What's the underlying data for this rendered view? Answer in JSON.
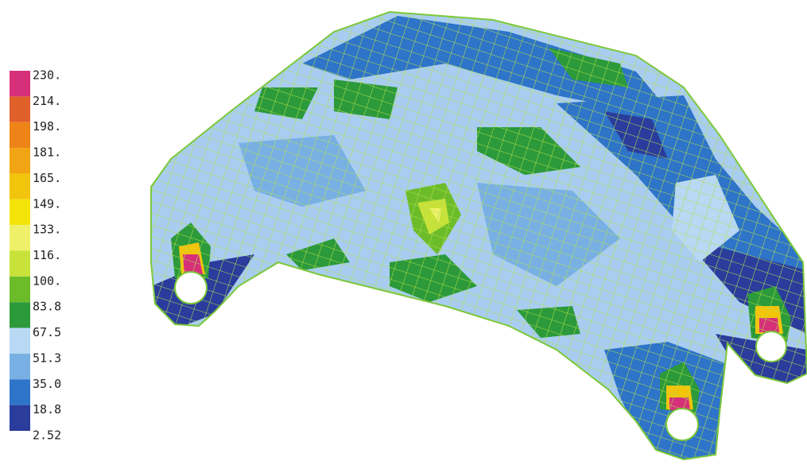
{
  "legend": {
    "levels": [
      {
        "label": "230.",
        "color": "#d6307a"
      },
      {
        "label": "214.",
        "color": "#e0602a"
      },
      {
        "label": "198.",
        "color": "#ee8418"
      },
      {
        "label": "181.",
        "color": "#f2a414"
      },
      {
        "label": "165.",
        "color": "#f2c40c"
      },
      {
        "label": "149.",
        "color": "#f4e40a"
      },
      {
        "label": "133.",
        "color": "#eef06a"
      },
      {
        "label": "116.",
        "color": "#c8e23a"
      },
      {
        "label": "100.",
        "color": "#6cbc2a"
      },
      {
        "label": "83.8",
        "color": "#2c9a3a"
      },
      {
        "label": "67.5",
        "color": "#b8d8f4"
      },
      {
        "label": "51.3",
        "color": "#78b0e4"
      },
      {
        "label": "35.0",
        "color": "#2e74c8"
      },
      {
        "label": "18.8",
        "color": "#2a3c9c"
      },
      {
        "label": "2.52"
      }
    ]
  }
}
